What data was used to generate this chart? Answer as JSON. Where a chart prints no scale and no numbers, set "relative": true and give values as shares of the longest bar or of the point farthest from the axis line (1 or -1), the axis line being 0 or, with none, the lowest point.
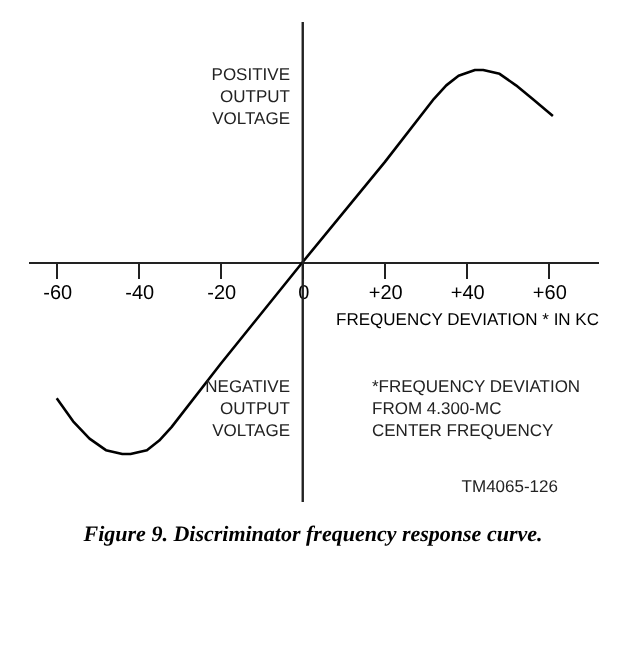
{
  "chart_data": {
    "type": "line",
    "relative": true,
    "title": "Figure 9.  Discriminator frequency response curve.",
    "xlabel": "FREQUENCY DEVIATION * IN KC",
    "x": [
      -60,
      -56,
      -52,
      -48,
      -44,
      -42,
      -38,
      -35,
      -32,
      -20,
      0,
      20,
      32,
      35,
      38,
      42,
      44,
      48,
      52,
      56,
      61
    ],
    "series": [
      {
        "color": "#000000",
        "values": [
          -0.71,
          -0.83,
          -0.92,
          -0.98,
          -1.0,
          -1.0,
          -0.98,
          -0.93,
          -0.86,
          -0.53,
          0,
          0.52,
          0.85,
          0.92,
          0.97,
          1.0,
          1.0,
          0.98,
          0.92,
          0.85,
          0.76
        ]
      }
    ],
    "xlim": [
      -67,
      72
    ],
    "xticks": [
      -60,
      -40,
      -20,
      0,
      {
        "value": 20,
        "label": "+20"
      },
      {
        "value": 40,
        "label": "+40"
      },
      {
        "value": 60,
        "label": "+60"
      }
    ],
    "marker": "none",
    "line_style": "solid",
    "annotations": [
      "POSITIVE\nOUTPUT\nVOLTAGE",
      "NEGATIVE\nOUTPUT\nVOLTAGE",
      "*FREQUENCY DEVIATION\nFROM  4.300-MC\nCENTER FREQUENCY",
      "TM4065-126"
    ]
  }
}
